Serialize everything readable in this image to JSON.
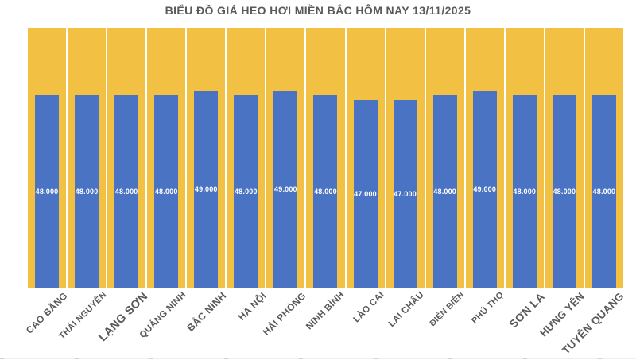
{
  "header": {
    "title": "BIỂU ĐỒ GIÁ HEO HƠI MIỀN BẮC HÔM NAY 13/11/2025"
  },
  "colors": {
    "bar_blue": "#4B73C4",
    "bar_gold": "#F2C144",
    "text_gray": "#595959",
    "value_label": "#FFFFFF"
  },
  "chart_data": {
    "type": "bar",
    "title": "BIỂU ĐỒ GIÁ HEO HƠI MIỀN BẮC HÔM NAY 13/11/2025",
    "categories": [
      "CAO BẰNG",
      "THÁI NGUYÊN",
      "LẠNG SƠN",
      "QUẢNG NINH",
      "BẮC NINH",
      "HÀ NỘI",
      "HẢI PHÒNG",
      "NINH BÌNH",
      "LÀO CAI",
      "LAI CHÂU",
      "ĐIỆN BIÊN",
      "PHÚ THỌ",
      "SƠN LA",
      "HƯNG YÊN",
      "TUYÊN QUANG"
    ],
    "series": [
      {
        "name": "gia-heo-hoi",
        "color": "#4B73C4",
        "values": [
          48000,
          48000,
          48000,
          48000,
          49000,
          48000,
          49000,
          48000,
          47000,
          47000,
          48000,
          49000,
          48000,
          48000,
          48000
        ],
        "value_labels": [
          "48.000",
          "48.000",
          "48.000",
          "48.000",
          "49.000",
          "48.000",
          "49.000",
          "48.000",
          "47.000",
          "47.000",
          "48.000",
          "49.000",
          "48.000",
          "48.000",
          "48.000"
        ]
      },
      {
        "name": "background-columns",
        "color": "#F2C144",
        "full_height": true
      }
    ],
    "xlabel": "",
    "ylabel": "",
    "legend": "none",
    "grid": "off",
    "value_label_position": "center-inside",
    "value_label_color": "#FFFFFF"
  }
}
